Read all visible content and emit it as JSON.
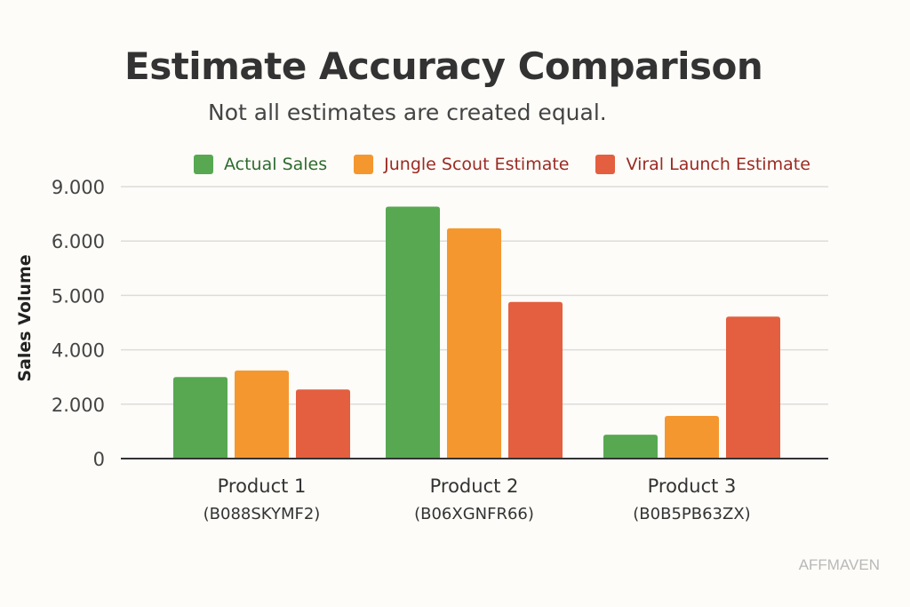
{
  "chart_data": {
    "type": "bar",
    "title": "Estimate Accuracy Comparison",
    "subtitle": "Not all estimates are created equal.",
    "ylabel": "Sales Volume",
    "xlabel": "",
    "y_ticks": [
      "0",
      "2.000",
      "4.000",
      "5.000",
      "6.000",
      "9.000"
    ],
    "y_tick_values": [
      0,
      2000,
      4000,
      5000,
      6000,
      9000
    ],
    "ylim": [
      0,
      9000
    ],
    "grid": true,
    "legend_placement": "top",
    "categories": [
      {
        "name": "Product 1",
        "code": "(B088SKYMF2)"
      },
      {
        "name": "Product 2",
        "code": "(B06XGNFR66)"
      },
      {
        "name": "Product 3",
        "code": "(B0B5PB63ZX)"
      }
    ],
    "series": [
      {
        "name": "Actual Sales",
        "color": "#58a852",
        "label_color": "#2e6b2e",
        "values": [
          3000,
          7900,
          880
        ]
      },
      {
        "name": "Jungle Scout Estimate",
        "color": "#f5972f",
        "label_color": "#9b2a22",
        "values": [
          3240,
          6700,
          1570
        ]
      },
      {
        "name": "Viral Launch Estimate",
        "color": "#e35f3f",
        "label_color": "#9b2a22",
        "values": [
          2540,
          4880,
          4610
        ]
      }
    ]
  },
  "watermark": "AFFMAVEN"
}
